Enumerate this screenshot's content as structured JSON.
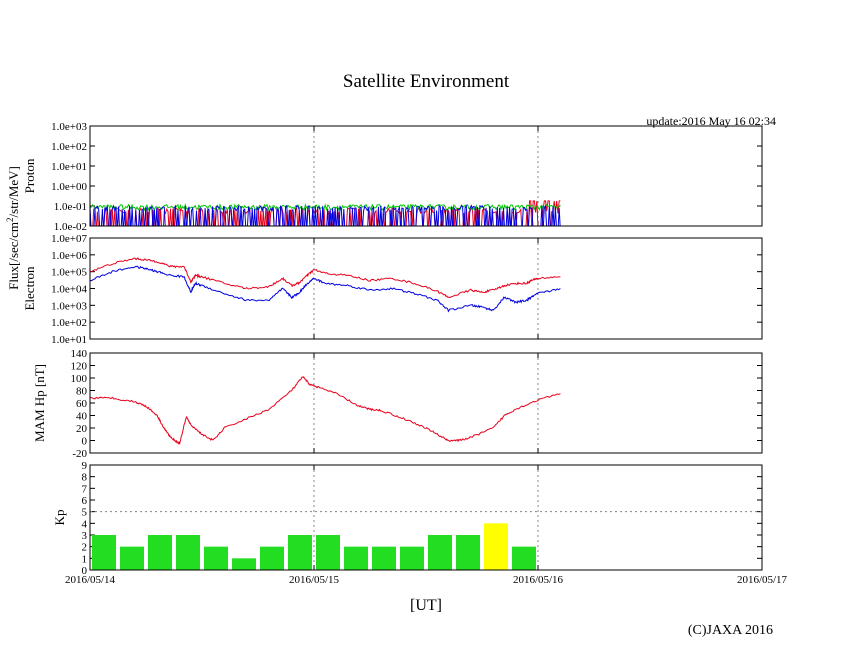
{
  "title": "Satellite Environment",
  "update_text": "update:2016 May 16 02:34",
  "copyright": "(C)JAXA 2016",
  "shared_ylabel": "Flux[/sec/cm2/str/MeV]",
  "xlabel": "[UT]",
  "chart_data": [
    {
      "type": "line",
      "name": "Proton",
      "ylabel": "Proton",
      "yscale": "log",
      "ylim": [
        0.01,
        1000
      ],
      "y_ticks": [
        "1.0e+03",
        "1.0e+02",
        "1.0e+01",
        "1.0e+00",
        "1.0e-01",
        "1.0e-02"
      ],
      "x_range": [
        0,
        3
      ],
      "series": [
        {
          "name": "proton-red",
          "color": "#e8001c",
          "start": 0,
          "end": 2.1,
          "base": 0.06,
          "style": "noisy-spiky"
        },
        {
          "name": "proton-green",
          "color": "#00c800",
          "start": 0,
          "end": 2.1,
          "base": 0.09,
          "style": "noisy"
        },
        {
          "name": "proton-blue",
          "color": "#0000e0",
          "start": 0,
          "end": 2.1,
          "base": 0.08,
          "style": "noisy-spiky"
        }
      ]
    },
    {
      "type": "line",
      "name": "Electron",
      "ylabel": "Electron",
      "yscale": "log",
      "ylim": [
        10,
        10000000
      ],
      "y_ticks": [
        "1.0e+07",
        "1.0e+06",
        "1.0e+05",
        "1.0e+04",
        "1.0e+03",
        "1.0e+02",
        "1.0e+01"
      ],
      "x_range": [
        0,
        3
      ],
      "series": [
        {
          "name": "electron-red",
          "color": "#e8001c",
          "x": [
            0,
            0.1,
            0.2,
            0.25,
            0.3,
            0.36,
            0.42,
            0.45,
            0.47,
            0.5,
            0.6,
            0.7,
            0.8,
            0.86,
            0.9,
            0.93,
            0.97,
            1.0,
            1.05,
            1.15,
            1.25,
            1.35,
            1.45,
            1.55,
            1.6,
            1.7,
            1.75,
            1.8,
            1.85,
            1.9,
            1.95,
            1.97,
            2.0,
            2.1
          ],
          "y": [
            100000,
            300000,
            600000,
            500000,
            400000,
            200000,
            200000,
            25000,
            60000,
            50000,
            20000,
            10000,
            13000,
            40000,
            15000,
            20000,
            60000,
            130000,
            80000,
            60000,
            30000,
            40000,
            20000,
            7000,
            3000,
            8000,
            6000,
            8000,
            15000,
            20000,
            20000,
            30000,
            40000,
            50000
          ]
        },
        {
          "name": "electron-blue",
          "color": "#0000e0",
          "x": [
            0,
            0.1,
            0.2,
            0.25,
            0.3,
            0.36,
            0.42,
            0.45,
            0.47,
            0.5,
            0.6,
            0.7,
            0.8,
            0.86,
            0.9,
            0.93,
            0.97,
            1.0,
            1.05,
            1.15,
            1.25,
            1.35,
            1.45,
            1.55,
            1.6,
            1.7,
            1.75,
            1.8,
            1.85,
            1.9,
            1.95,
            1.97,
            2.0,
            2.1
          ],
          "y": [
            30000,
            100000,
            200000,
            150000,
            100000,
            60000,
            50000,
            6000,
            20000,
            15000,
            5000,
            2000,
            2000,
            10000,
            3000,
            5000,
            20000,
            40000,
            20000,
            15000,
            8000,
            10000,
            5000,
            2000,
            500,
            1000,
            800,
            500,
            3000,
            1500,
            2000,
            3000,
            5000,
            10000
          ]
        }
      ]
    },
    {
      "type": "line",
      "name": "MAM Hp",
      "ylabel": "MAM Hp [nT]",
      "ylim": [
        -20,
        140
      ],
      "y_ticks": [
        "140",
        "120",
        "100",
        "80",
        "60",
        "40",
        "20",
        "0",
        "-20"
      ],
      "x_range": [
        0,
        3
      ],
      "series": [
        {
          "name": "mam-hp",
          "color": "#e8001c",
          "x": [
            0,
            0.1,
            0.2,
            0.25,
            0.3,
            0.33,
            0.36,
            0.4,
            0.43,
            0.45,
            0.5,
            0.55,
            0.6,
            0.7,
            0.8,
            0.9,
            0.95,
            0.98,
            1.02,
            1.1,
            1.2,
            1.25,
            1.3,
            1.4,
            1.5,
            1.55,
            1.6,
            1.65,
            1.7,
            1.8,
            1.85,
            1.9,
            2.0,
            2.1
          ],
          "y": [
            68,
            68,
            62,
            55,
            40,
            20,
            5,
            -5,
            38,
            25,
            10,
            0,
            20,
            35,
            50,
            80,
            102,
            90,
            85,
            75,
            55,
            50,
            48,
            35,
            20,
            10,
            0,
            0,
            5,
            20,
            40,
            50,
            65,
            75
          ]
        }
      ]
    },
    {
      "type": "bar",
      "name": "Kp",
      "ylabel": "Kp",
      "ylim": [
        0,
        9
      ],
      "y_ticks": [
        "9",
        "8",
        "7",
        "6",
        "5",
        "4",
        "3",
        "2",
        "1",
        "0"
      ],
      "x_range": [
        0,
        3
      ],
      "bar_width_days": 0.125,
      "threshold": 5,
      "values": [
        3,
        2,
        3,
        3,
        2,
        1,
        2,
        3,
        3,
        2,
        2,
        2,
        3,
        3,
        4,
        2
      ],
      "colors": [
        "#22dd22",
        "#22dd22",
        "#22dd22",
        "#22dd22",
        "#22dd22",
        "#22dd22",
        "#22dd22",
        "#22dd22",
        "#22dd22",
        "#22dd22",
        "#22dd22",
        "#22dd22",
        "#22dd22",
        "#22dd22",
        "#ffff00",
        "#22dd22"
      ]
    }
  ],
  "x_ticks": [
    "2016/05/14",
    "2016/05/15",
    "2016/05/16",
    "2016/05/17"
  ]
}
